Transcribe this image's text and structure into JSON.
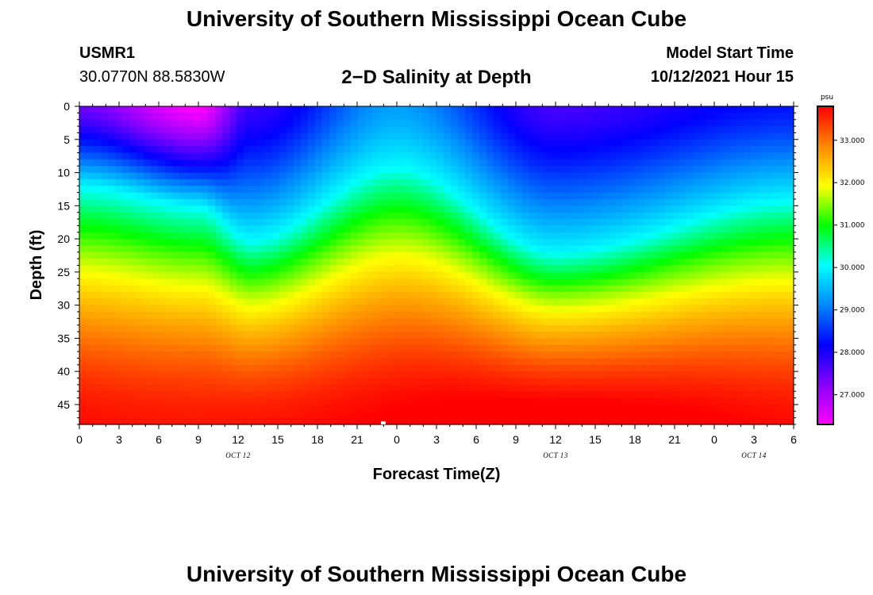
{
  "header": {
    "title": "University of Southern Mississippi Ocean Cube",
    "station_id": "USMR1",
    "coordinates": "30.0770N  88.5830W",
    "subtitle": "2−D Salinity at Depth",
    "model_start_label": "Model Start Time",
    "model_start_value": "10/12/2021 Hour 15"
  },
  "footer": {
    "title": "University of Southern Mississippi Ocean Cube"
  },
  "chart_data": {
    "type": "heatmap",
    "title": "2−D Salinity at Depth",
    "xlabel": "Forecast Time(Z)",
    "ylabel": "Depth (ft)",
    "x_ticks": [
      "0",
      "3",
      "6",
      "9",
      "12",
      "15",
      "18",
      "21",
      "0",
      "3",
      "6",
      "9",
      "12",
      "15",
      "18",
      "21",
      "0",
      "3",
      "6"
    ],
    "x_range_hours": [
      0,
      54
    ],
    "y_ticks": [
      "0",
      "5",
      "10",
      "15",
      "20",
      "25",
      "30",
      "35",
      "40",
      "45"
    ],
    "y_range_ft": [
      0,
      48
    ],
    "date_labels": [
      {
        "text": "OCT 12",
        "hour": 12
      },
      {
        "text": "OCT 13",
        "hour": 36
      },
      {
        "text": "OCT 14",
        "hour": 51
      }
    ],
    "colorbar": {
      "units": "psu",
      "range": [
        26.3,
        33.8
      ],
      "ticks": [
        "33.000",
        "32.000",
        "31.000",
        "30.000",
        "29.000",
        "28.000",
        "27.000"
      ],
      "tick_values": [
        33,
        32,
        31,
        30,
        29,
        28,
        27
      ],
      "colors": [
        "#ff00ff",
        "#8800ff",
        "#0000ff",
        "#0088ff",
        "#00ffff",
        "#00ff00",
        "#ffff00",
        "#ff8800",
        "#ff0000"
      ]
    },
    "field_description_samples": {
      "hours": [
        0,
        9,
        13,
        24,
        36,
        54
      ],
      "surface_psu": [
        27.4,
        26.3,
        27.8,
        29.3,
        27.7,
        28.3
      ],
      "isohaline_30psu_depth_ft": [
        12,
        15,
        20,
        9,
        22,
        14
      ]
    }
  }
}
